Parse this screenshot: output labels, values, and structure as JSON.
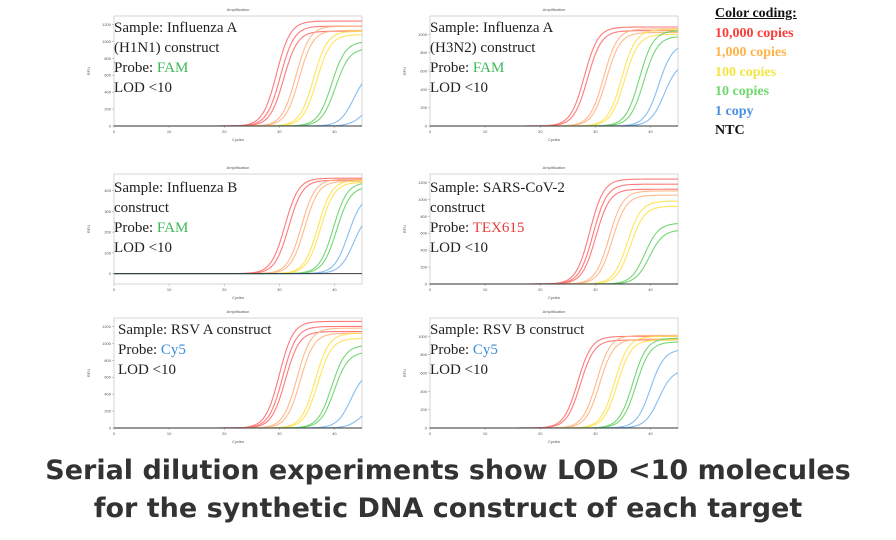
{
  "legend": {
    "title": "Color coding:",
    "entries": [
      {
        "label": "10,000 copies",
        "color": "#ff3b3b"
      },
      {
        "label": "1,000 copies",
        "color": "#ffb347"
      },
      {
        "label": "100 copies",
        "color": "#f2e640"
      },
      {
        "label": "10 copies",
        "color": "#6fd96f"
      },
      {
        "label": "1 copy",
        "color": "#4a90e2"
      },
      {
        "label": "NTC",
        "color": "#111111"
      }
    ]
  },
  "caption": {
    "line1": "Serial dilution experiments show LOD <10 molecules",
    "line2": "for the synthetic DNA construct of each target"
  },
  "chart_data": [
    {
      "type": "line",
      "title": "Amplification",
      "xlabel": "Cycles",
      "ylabel": "RFU",
      "xlim": [
        0,
        45
      ],
      "ylim": [
        0,
        1300
      ],
      "xticks": [
        0,
        10,
        20,
        30,
        40
      ],
      "yticks": [
        0,
        200,
        400,
        600,
        800,
        1000,
        1200
      ],
      "info": {
        "sample": "Sample: Influenza A",
        "sample2": "(H1N1) construct",
        "probe_prefix": "Probe: ",
        "probe": "FAM",
        "probe_color": "#3cb95a",
        "lod": "LOD <10"
      },
      "series": [
        {
          "group": "10,000 copies",
          "color": "#ff6b6b",
          "curves": [
            {
              "ct": 29.5,
              "plateau": 1240
            },
            {
              "ct": 30.2,
              "plateau": 1180
            },
            {
              "ct": 30.8,
              "plateau": 1120
            }
          ]
        },
        {
          "group": "1,000 copies",
          "color": "#ffb380",
          "curves": [
            {
              "ct": 33.0,
              "plateau": 1180
            },
            {
              "ct": 33.6,
              "plateau": 1130
            }
          ]
        },
        {
          "group": "100 copies",
          "color": "#ffe14d",
          "curves": [
            {
              "ct": 36.2,
              "plateau": 1120
            },
            {
              "ct": 36.8,
              "plateau": 1080
            }
          ]
        },
        {
          "group": "10 copies",
          "color": "#66d166",
          "curves": [
            {
              "ct": 39.5,
              "plateau": 1000
            },
            {
              "ct": 40.2,
              "plateau": 920
            }
          ]
        },
        {
          "group": "1 copy",
          "color": "#7ab6f0",
          "curves": [
            {
              "ct": 43.5,
              "plateau": 650
            },
            {
              "ct": 45.5,
              "plateau": 320
            }
          ]
        },
        {
          "group": "NTC",
          "color": "#222222",
          "curves": [
            {
              "ct": 99,
              "plateau": 0
            }
          ]
        }
      ]
    },
    {
      "type": "line",
      "title": "Amplification",
      "xlabel": "Cycles",
      "ylabel": "RFU",
      "xlim": [
        0,
        45
      ],
      "ylim": [
        0,
        1200
      ],
      "xticks": [
        0,
        10,
        20,
        30,
        40
      ],
      "yticks": [
        0,
        200,
        400,
        600,
        800,
        1000
      ],
      "info": {
        "sample": "Sample: Influenza A",
        "sample2": "(H3N2) construct",
        "probe_prefix": "Probe: ",
        "probe": "FAM",
        "probe_color": "#3cb95a",
        "lod": "LOD <10"
      },
      "series": [
        {
          "group": "10,000 copies",
          "color": "#ff6b6b",
          "curves": [
            {
              "ct": 28.0,
              "plateau": 1080
            },
            {
              "ct": 28.6,
              "plateau": 1040
            }
          ]
        },
        {
          "group": "1,000 copies",
          "color": "#ffb380",
          "curves": [
            {
              "ct": 31.5,
              "plateau": 1060
            },
            {
              "ct": 32.0,
              "plateau": 1020
            }
          ]
        },
        {
          "group": "100 copies",
          "color": "#ffe14d",
          "curves": [
            {
              "ct": 34.8,
              "plateau": 1050
            },
            {
              "ct": 35.3,
              "plateau": 1000
            }
          ]
        },
        {
          "group": "10 copies",
          "color": "#66d166",
          "curves": [
            {
              "ct": 38.0,
              "plateau": 1040
            },
            {
              "ct": 38.8,
              "plateau": 980
            }
          ]
        },
        {
          "group": "1 copy",
          "color": "#7ab6f0",
          "curves": [
            {
              "ct": 41.5,
              "plateau": 900
            },
            {
              "ct": 42.5,
              "plateau": 700
            }
          ]
        },
        {
          "group": "NTC",
          "color": "#222222",
          "curves": [
            {
              "ct": 99,
              "plateau": 0
            }
          ]
        }
      ]
    },
    {
      "type": "line",
      "title": "Amplification",
      "xlabel": "Cycles",
      "ylabel": "RFU",
      "xlim": [
        0,
        45
      ],
      "ylim": [
        -50,
        480
      ],
      "xticks": [
        0,
        10,
        20,
        30,
        40
      ],
      "yticks": [
        0,
        100,
        200,
        300,
        400
      ],
      "info": {
        "sample": "Sample: Influenza B",
        "sample2": "construct",
        "probe_prefix": "Probe: ",
        "probe": "FAM",
        "probe_color": "#3cb95a",
        "lod": "LOD <10"
      },
      "series": [
        {
          "group": "10,000 copies",
          "color": "#ff6b6b",
          "curves": [
            {
              "ct": 31.0,
              "plateau": 460
            },
            {
              "ct": 31.7,
              "plateau": 450
            }
          ]
        },
        {
          "group": "1,000 copies",
          "color": "#ffb380",
          "curves": [
            {
              "ct": 34.0,
              "plateau": 455
            },
            {
              "ct": 34.6,
              "plateau": 445
            }
          ]
        },
        {
          "group": "100 copies",
          "color": "#ffe14d",
          "curves": [
            {
              "ct": 37.0,
              "plateau": 450
            },
            {
              "ct": 37.5,
              "plateau": 440
            }
          ]
        },
        {
          "group": "10 copies",
          "color": "#66d166",
          "curves": [
            {
              "ct": 39.8,
              "plateau": 440
            },
            {
              "ct": 40.4,
              "plateau": 420
            }
          ]
        },
        {
          "group": "1 copy",
          "color": "#7ab6f0",
          "curves": [
            {
              "ct": 42.5,
              "plateau": 380
            },
            {
              "ct": 43.5,
              "plateau": 300
            }
          ]
        },
        {
          "group": "NTC",
          "color": "#222222",
          "curves": [
            {
              "ct": 99,
              "plateau": 0
            }
          ]
        }
      ]
    },
    {
      "type": "line",
      "title": "Amplification",
      "xlabel": "Cycles",
      "ylabel": "RFU",
      "xlim": [
        0,
        45
      ],
      "ylim": [
        0,
        1300
      ],
      "xticks": [
        0,
        10,
        20,
        30,
        40
      ],
      "yticks": [
        0,
        200,
        400,
        600,
        800,
        1000,
        1200
      ],
      "info": {
        "sample": "Sample: SARS-CoV-2",
        "sample2": "construct",
        "probe_prefix": "Probe: ",
        "probe": "TEX615",
        "probe_color": "#e83b3b",
        "lod": "LOD <10"
      },
      "series": [
        {
          "group": "10,000 copies",
          "color": "#ff6b6b",
          "curves": [
            {
              "ct": 29.0,
              "plateau": 1240
            },
            {
              "ct": 29.6,
              "plateau": 1180
            },
            {
              "ct": 30.1,
              "plateau": 1120
            }
          ]
        },
        {
          "group": "1,000 copies",
          "color": "#ffb380",
          "curves": [
            {
              "ct": 32.5,
              "plateau": 1100
            },
            {
              "ct": 33.1,
              "plateau": 1050
            }
          ]
        },
        {
          "group": "100 copies",
          "color": "#ffe14d",
          "curves": [
            {
              "ct": 35.8,
              "plateau": 980
            },
            {
              "ct": 36.4,
              "plateau": 920
            }
          ]
        },
        {
          "group": "10 copies",
          "color": "#66d166",
          "curves": [
            {
              "ct": 39.0,
              "plateau": 720
            },
            {
              "ct": 39.8,
              "plateau": 640
            }
          ]
        },
        {
          "group": "1 copy",
          "color": "#7ab6f0",
          "curves": [
            {
              "ct": 99,
              "plateau": 0
            }
          ]
        },
        {
          "group": "NTC",
          "color": "#222222",
          "curves": [
            {
              "ct": 99,
              "plateau": 0
            }
          ]
        }
      ]
    },
    {
      "type": "line",
      "title": "Amplification",
      "xlabel": "Cycles",
      "ylabel": "RFU",
      "xlim": [
        0,
        45
      ],
      "ylim": [
        0,
        1300
      ],
      "xticks": [
        0,
        10,
        20,
        30,
        40
      ],
      "yticks": [
        0,
        200,
        400,
        600,
        800,
        1000,
        1200
      ],
      "info": {
        "sample": "Sample: RSV A construct",
        "sample2": "",
        "probe_prefix": "Probe: ",
        "probe": "Cy5",
        "probe_color": "#3a8fd9",
        "lod": "LOD <10"
      },
      "series": [
        {
          "group": "10,000 copies",
          "color": "#ff6b6b",
          "curves": [
            {
              "ct": 30.0,
              "plateau": 1260
            },
            {
              "ct": 30.6,
              "plateau": 1200
            },
            {
              "ct": 31.1,
              "plateau": 1140
            }
          ]
        },
        {
          "group": "1,000 copies",
          "color": "#ffb380",
          "curves": [
            {
              "ct": 33.2,
              "plateau": 1180
            },
            {
              "ct": 33.8,
              "plateau": 1120
            }
          ]
        },
        {
          "group": "100 copies",
          "color": "#ffe14d",
          "curves": [
            {
              "ct": 36.5,
              "plateau": 1120
            },
            {
              "ct": 37.0,
              "plateau": 1060
            }
          ]
        },
        {
          "group": "10 copies",
          "color": "#66d166",
          "curves": [
            {
              "ct": 39.5,
              "plateau": 980
            },
            {
              "ct": 40.0,
              "plateau": 900
            }
          ]
        },
        {
          "group": "1 copy",
          "color": "#7ab6f0",
          "curves": [
            {
              "ct": 43.0,
              "plateau": 680
            },
            {
              "ct": 45.0,
              "plateau": 280
            }
          ]
        },
        {
          "group": "NTC",
          "color": "#222222",
          "curves": [
            {
              "ct": 99,
              "plateau": 0
            }
          ]
        }
      ]
    },
    {
      "type": "line",
      "title": "Amplification",
      "xlabel": "Cycles",
      "ylabel": "RFU",
      "xlim": [
        0,
        45
      ],
      "ylim": [
        0,
        1200
      ],
      "xticks": [
        0,
        10,
        20,
        30,
        40
      ],
      "yticks": [
        0,
        200,
        400,
        600,
        800,
        1000
      ],
      "info": {
        "sample": "Sample: RSV B construct",
        "sample2": "",
        "probe_prefix": "Probe: ",
        "probe": "Cy5",
        "probe_color": "#3a8fd9",
        "lod": "LOD <10"
      },
      "series": [
        {
          "group": "10,000 copies",
          "color": "#ff6b6b",
          "curves": [
            {
              "ct": 26.8,
              "plateau": 1000
            },
            {
              "ct": 27.3,
              "plateau": 960
            }
          ]
        },
        {
          "group": "1,000 copies",
          "color": "#ffb380",
          "curves": [
            {
              "ct": 30.2,
              "plateau": 1010
            },
            {
              "ct": 30.8,
              "plateau": 970
            }
          ]
        },
        {
          "group": "100 copies",
          "color": "#ffe14d",
          "curves": [
            {
              "ct": 33.5,
              "plateau": 1000
            },
            {
              "ct": 34.0,
              "plateau": 960
            }
          ]
        },
        {
          "group": "10 copies",
          "color": "#66d166",
          "curves": [
            {
              "ct": 36.8,
              "plateau": 980
            },
            {
              "ct": 37.4,
              "plateau": 940
            }
          ]
        },
        {
          "group": "1 copy",
          "color": "#7ab6f0",
          "curves": [
            {
              "ct": 40.0,
              "plateau": 860
            },
            {
              "ct": 41.5,
              "plateau": 640
            }
          ]
        },
        {
          "group": "NTC",
          "color": "#222222",
          "curves": [
            {
              "ct": 99,
              "plateau": 0
            }
          ]
        }
      ]
    }
  ]
}
